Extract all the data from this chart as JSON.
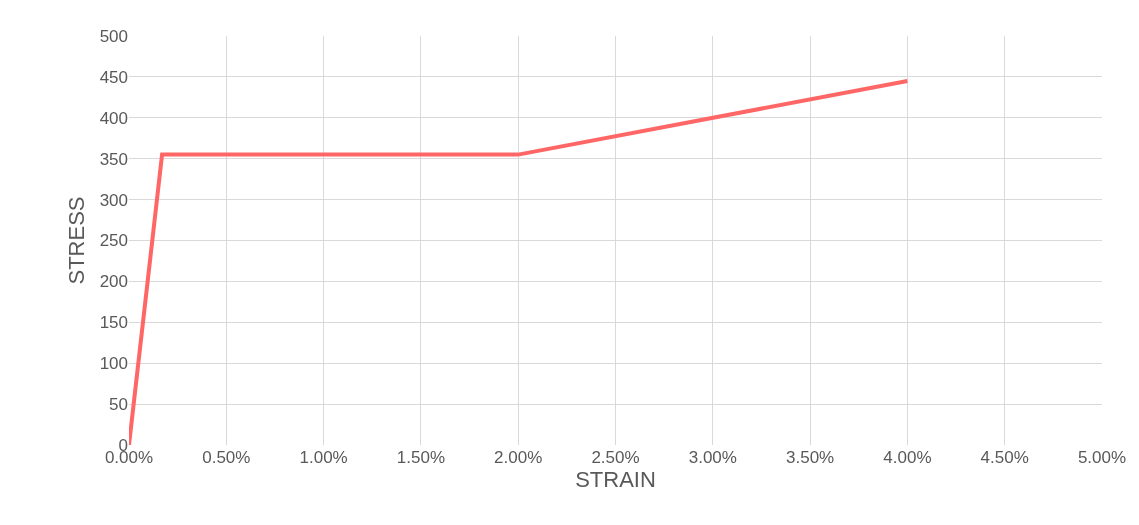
{
  "chart_data": {
    "type": "line",
    "xlabel": "STRAIN",
    "ylabel": "STRESS",
    "x": [
      0,
      0.0017,
      0.02,
      0.04
    ],
    "series": [
      {
        "color": "#ff6666",
        "values": [
          0,
          355,
          355,
          445
        ]
      }
    ],
    "xlim": [
      0,
      0.05
    ],
    "xticks": [
      {
        "value": 0,
        "label": "0.00%"
      },
      {
        "value": 0.005,
        "label": "0.50%"
      },
      {
        "value": 0.01,
        "label": "1.00%"
      },
      {
        "value": 0.015,
        "label": "1.50%"
      },
      {
        "value": 0.02,
        "label": "2.00%"
      },
      {
        "value": 0.025,
        "label": "2.50%"
      },
      {
        "value": 0.03,
        "label": "3.00%"
      },
      {
        "value": 0.035,
        "label": "3.50%"
      },
      {
        "value": 0.04,
        "label": "4.00%"
      },
      {
        "value": 0.045,
        "label": "4.50%"
      },
      {
        "value": 0.05,
        "label": "5.00%"
      }
    ],
    "ylim": [
      0,
      500
    ],
    "yticks": [
      0,
      50,
      100,
      150,
      200,
      250,
      300,
      350,
      400,
      450,
      500
    ],
    "grid": true,
    "marker": "none",
    "line_style": "solid"
  }
}
